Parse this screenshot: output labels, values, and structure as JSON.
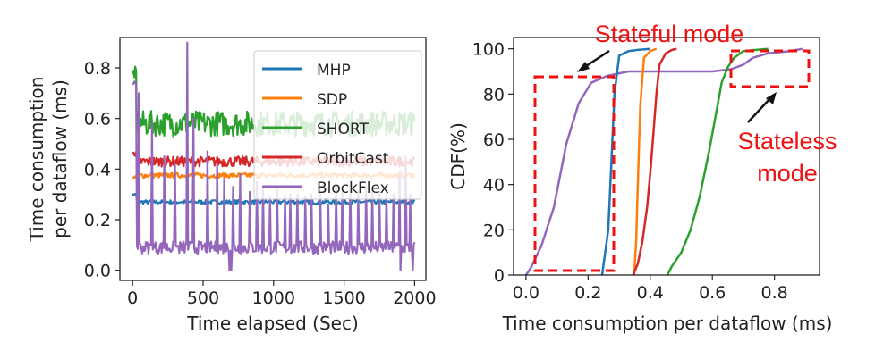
{
  "chart_data": [
    {
      "type": "line",
      "xlabel": "Time elapsed (Sec)",
      "ylabel_lines": [
        "Time consumption",
        "per dataflow (ms)"
      ],
      "xlim": [
        -90,
        2080
      ],
      "ylim": [
        -0.04,
        0.92
      ],
      "xticks": [
        0,
        500,
        1000,
        1500,
        2000
      ],
      "yticks": [
        0.0,
        0.2,
        0.4,
        0.6,
        0.8
      ],
      "legend_position": "upper right",
      "series": [
        {
          "name": "MHP",
          "color": "#1f77b4",
          "mean": 0.27,
          "amp": 0.008,
          "start": 0.3,
          "x": [
            0,
            2000
          ],
          "y": [
            0.27,
            0.27
          ]
        },
        {
          "name": "SDP",
          "color": "#ff7f0e",
          "mean": 0.375,
          "amp": 0.01,
          "start": 0.37,
          "x": [
            0,
            2000
          ],
          "y": [
            0.375,
            0.375
          ]
        },
        {
          "name": "SHORT",
          "color": "#2ca02c",
          "mean": 0.58,
          "amp": 0.05,
          "start": 0.78,
          "x": [
            0,
            2000
          ],
          "y": [
            0.6,
            0.58
          ]
        },
        {
          "name": "OrbitCast",
          "color": "#d62728",
          "mean": 0.43,
          "amp": 0.02,
          "start": 0.46,
          "x": [
            0,
            2000
          ],
          "y": [
            0.43,
            0.43
          ]
        },
        {
          "name": "BlockFlex",
          "color": "#9467bd",
          "mean": 0.09,
          "amp": 0.025,
          "start": 0.74,
          "x": [
            0,
            2000
          ],
          "y": [
            0.1,
            0.03
          ],
          "spikes": [
            [
              20,
              0.74
            ],
            [
              45,
              0.7
            ],
            [
              140,
              0.58
            ],
            [
              225,
              0.45
            ],
            [
              300,
              0.42
            ],
            [
              385,
              0.9
            ],
            [
              430,
              0.6
            ],
            [
              530,
              0.47
            ],
            [
              600,
              0.42
            ],
            [
              650,
              0.36
            ],
            [
              710,
              0.33
            ],
            [
              760,
              0.38
            ],
            [
              830,
              0.31
            ],
            [
              880,
              0.35
            ],
            [
              925,
              0.33
            ],
            [
              975,
              0.29
            ],
            [
              1025,
              0.33
            ],
            [
              1080,
              0.3
            ],
            [
              1120,
              0.3
            ],
            [
              1170,
              0.3
            ],
            [
              1225,
              0.29
            ],
            [
              1270,
              0.3
            ],
            [
              1330,
              0.3
            ],
            [
              1390,
              0.26
            ],
            [
              1445,
              0.33
            ],
            [
              1490,
              0.32
            ],
            [
              1545,
              0.35
            ],
            [
              1600,
              0.31
            ],
            [
              1655,
              0.33
            ],
            [
              1700,
              0.31
            ],
            [
              1750,
              0.31
            ],
            [
              1800,
              0.31
            ],
            [
              1850,
              0.3
            ],
            [
              1895,
              0.39
            ],
            [
              1935,
              0.45
            ],
            [
              1970,
              0.3
            ]
          ]
        }
      ]
    },
    {
      "type": "line",
      "xlabel": "Time consumption per dataflow (ms)",
      "ylabel": "CDF(%)",
      "xlim": [
        -0.04,
        0.945
      ],
      "ylim": [
        0,
        105
      ],
      "xticks": [
        0.0,
        0.2,
        0.4,
        0.6,
        0.8
      ],
      "yticks": [
        0,
        20,
        40,
        60,
        80,
        100
      ],
      "series": [
        {
          "name": "BlockFlex",
          "color": "#9467bd",
          "x": [
            0.0,
            0.015,
            0.05,
            0.09,
            0.13,
            0.17,
            0.21,
            0.26,
            0.33,
            0.42,
            0.52,
            0.6,
            0.66,
            0.7,
            0.73,
            0.78,
            0.85,
            0.89
          ],
          "y": [
            0,
            3,
            13,
            30,
            58,
            76,
            85,
            88,
            90,
            90,
            90,
            90,
            91,
            93,
            96,
            98,
            99,
            100
          ]
        },
        {
          "name": "MHP",
          "color": "#1f77b4",
          "x": [
            0.245,
            0.265,
            0.275,
            0.285,
            0.3,
            0.33,
            0.36,
            0.4
          ],
          "y": [
            0,
            20,
            50,
            80,
            97,
            99,
            99.5,
            100
          ]
        },
        {
          "name": "SDP",
          "color": "#ff7f0e",
          "x": [
            0.348,
            0.355,
            0.36,
            0.368,
            0.38,
            0.4,
            0.42
          ],
          "y": [
            0,
            15,
            40,
            75,
            96,
            99,
            100
          ]
        },
        {
          "name": "OrbitCast",
          "color": "#d62728",
          "x": [
            0.345,
            0.36,
            0.375,
            0.39,
            0.4,
            0.41,
            0.42,
            0.43,
            0.45,
            0.47,
            0.485
          ],
          "y": [
            0,
            5,
            15,
            30,
            45,
            62,
            80,
            93,
            98,
            99.5,
            100
          ]
        },
        {
          "name": "SHORT",
          "color": "#2ca02c",
          "x": [
            0.455,
            0.47,
            0.5,
            0.53,
            0.56,
            0.59,
            0.61,
            0.63,
            0.65,
            0.67,
            0.7,
            0.74,
            0.78
          ],
          "y": [
            0,
            4,
            10,
            20,
            35,
            55,
            70,
            85,
            92,
            96,
            99,
            99.5,
            100
          ]
        }
      ],
      "annotations": [
        {
          "text": "Stateful mode"
        },
        {
          "text_lines": [
            "Stateless",
            "mode"
          ]
        }
      ]
    }
  ]
}
